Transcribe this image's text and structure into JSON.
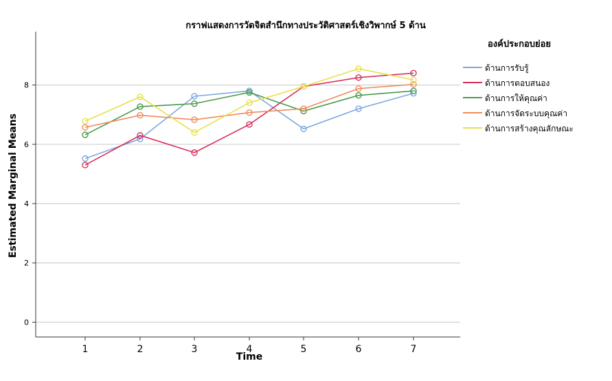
{
  "chart_data": {
    "type": "line",
    "title": "กราฟแสดงการวัดจิตสำนึกทางประวัติศาสตร์เชิงวิพากษ์ 5 ด้าน",
    "xlabel": "Time",
    "ylabel": "Estimated Marginal Means",
    "categories": [
      "1",
      "2",
      "3",
      "4",
      "5",
      "6",
      "7"
    ],
    "y_ticks": [
      "0",
      "2",
      "4",
      "6",
      "8"
    ],
    "ylim": [
      -0.5,
      9.8
    ],
    "grid": "horizontal",
    "legend_title": "องค์ประกอบย่อย",
    "legend_position": "right",
    "series": [
      {
        "name": "ด้านการรับรู้",
        "color": "#7ba7df",
        "values": [
          5.52,
          6.18,
          7.62,
          7.8,
          6.52,
          7.2,
          7.72
        ]
      },
      {
        "name": "ด้านการตอบสนอง",
        "color": "#d6305a",
        "values": [
          5.3,
          6.3,
          5.72,
          6.67,
          7.95,
          8.25,
          8.4
        ]
      },
      {
        "name": "ด้านการให้คุณค่า",
        "color": "#4a9a4a",
        "values": [
          6.32,
          7.27,
          7.37,
          7.75,
          7.12,
          7.65,
          7.8
        ]
      },
      {
        "name": "ด้านการจัดระบบคุณค่า",
        "color": "#f08a5d",
        "values": [
          6.57,
          6.98,
          6.83,
          7.07,
          7.2,
          7.88,
          8.02
        ]
      },
      {
        "name": "ด้านการสร้างคุณลักษณะ",
        "color": "#e8df4a",
        "values": [
          6.78,
          7.6,
          6.4,
          7.4,
          7.95,
          8.55,
          8.17
        ]
      }
    ]
  }
}
